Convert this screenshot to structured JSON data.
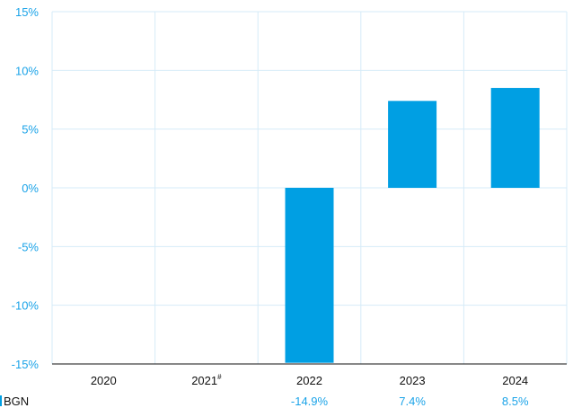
{
  "chart_data": {
    "type": "bar",
    "categories": [
      "2020",
      "2021",
      "2022",
      "2023",
      "2024"
    ],
    "category_notes": [
      "",
      "#",
      "",
      "",
      ""
    ],
    "series": [
      {
        "name": "BGN",
        "values": [
          null,
          null,
          -14.9,
          7.4,
          8.5
        ]
      }
    ],
    "data_labels": [
      "",
      "",
      "-14.9%",
      "7.4%",
      "8.5%"
    ],
    "y_ticks": [
      "15%",
      "10%",
      "5%",
      "0%",
      "-5%",
      "-10%",
      "-15%"
    ],
    "y_tick_values": [
      15,
      10,
      5,
      0,
      -5,
      -10,
      -15
    ],
    "ylim": [
      -15,
      15
    ],
    "title": "",
    "xlabel": "",
    "ylabel": "",
    "grid": true,
    "colors": {
      "bar": "#009fe3",
      "grid": "#d6ebf8",
      "axis_text": "#1aa3e8"
    }
  }
}
